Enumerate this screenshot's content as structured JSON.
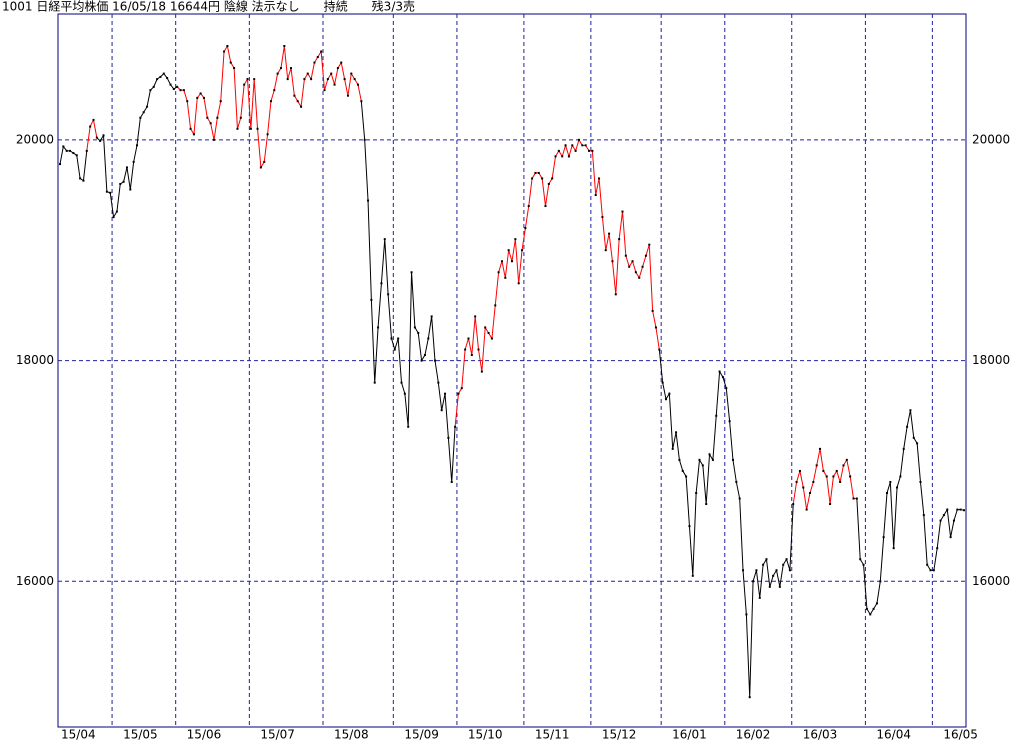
{
  "chart_data": {
    "type": "line",
    "title": "1001 日経平均株価 16/05/18 16644円 陰線 法示なし　　持続　　残3/3売",
    "ylim": [
      14680,
      21140
    ],
    "yticks": [
      16000,
      18000,
      20000
    ],
    "grid": true,
    "color": "#000000",
    "highlight": {
      "color": "#ff0000",
      "ranges": [
        [
          8,
          11
        ],
        [
          35,
          90
        ],
        [
          118,
          179
        ],
        [
          219,
          238
        ]
      ]
    },
    "categories": [
      "15/04",
      null,
      null,
      null,
      null,
      null,
      null,
      null,
      null,
      null,
      null,
      null,
      null,
      null,
      null,
      null,
      "15/05",
      null,
      null,
      null,
      null,
      null,
      null,
      null,
      null,
      null,
      null,
      null,
      null,
      null,
      null,
      null,
      null,
      null,
      null,
      "15/06",
      null,
      null,
      null,
      null,
      null,
      null,
      null,
      null,
      null,
      null,
      null,
      null,
      null,
      null,
      null,
      null,
      null,
      null,
      null,
      null,
      null,
      "15/07",
      null,
      null,
      null,
      null,
      null,
      null,
      null,
      null,
      null,
      null,
      null,
      null,
      null,
      null,
      null,
      null,
      null,
      null,
      null,
      null,
      null,
      "15/08",
      null,
      null,
      null,
      null,
      null,
      null,
      null,
      null,
      null,
      null,
      null,
      null,
      null,
      null,
      null,
      null,
      null,
      null,
      null,
      null,
      "15/09",
      null,
      null,
      null,
      null,
      null,
      null,
      null,
      null,
      null,
      null,
      null,
      null,
      null,
      null,
      null,
      null,
      null,
      null,
      "15/10",
      null,
      null,
      null,
      null,
      null,
      null,
      null,
      null,
      null,
      null,
      null,
      null,
      null,
      null,
      null,
      null,
      null,
      null,
      null,
      "15/11",
      null,
      null,
      null,
      null,
      null,
      null,
      null,
      null,
      null,
      null,
      null,
      null,
      null,
      null,
      null,
      null,
      null,
      null,
      null,
      "15/12",
      null,
      null,
      null,
      null,
      null,
      null,
      null,
      null,
      null,
      null,
      null,
      null,
      null,
      null,
      null,
      null,
      null,
      null,
      null,
      null,
      "16/01",
      null,
      null,
      null,
      null,
      null,
      null,
      null,
      null,
      null,
      null,
      null,
      null,
      null,
      null,
      null,
      null,
      null,
      null,
      "16/02",
      null,
      null,
      null,
      null,
      null,
      null,
      null,
      null,
      null,
      null,
      null,
      null,
      null,
      null,
      null,
      null,
      null,
      null,
      null,
      "16/03",
      null,
      null,
      null,
      null,
      null,
      null,
      null,
      null,
      null,
      null,
      null,
      null,
      null,
      null,
      null,
      null,
      null,
      null,
      null,
      null,
      null,
      "16/04",
      null,
      null,
      null,
      null,
      null,
      null,
      null,
      null,
      null,
      null,
      null,
      null,
      null,
      null,
      null,
      null,
      null,
      null,
      null,
      "16/05",
      null,
      null,
      null,
      null,
      null,
      null,
      null,
      null,
      null
    ],
    "values": [
      19780,
      19940,
      19900,
      19900,
      19880,
      19860,
      19650,
      19630,
      19900,
      20120,
      20180,
      20020,
      19990,
      20040,
      19530,
      19520,
      19300,
      19350,
      19600,
      19620,
      19750,
      19550,
      19800,
      19950,
      20200,
      20250,
      20300,
      20450,
      20480,
      20550,
      20570,
      20600,
      20560,
      20500,
      20460,
      20480,
      20450,
      20450,
      20350,
      20100,
      20050,
      20380,
      20420,
      20380,
      20200,
      20150,
      20000,
      20200,
      20350,
      20800,
      20850,
      20700,
      20650,
      20100,
      20200,
      20500,
      20550,
      20100,
      20550,
      20100,
      19750,
      19800,
      20050,
      20350,
      20450,
      20600,
      20650,
      20850,
      20550,
      20650,
      20400,
      20350,
      20300,
      20550,
      20600,
      20550,
      20700,
      20750,
      20800,
      20450,
      20550,
      20600,
      20500,
      20650,
      20700,
      20550,
      20400,
      20600,
      20550,
      20500,
      20350,
      20000,
      19450,
      18550,
      17800,
      18300,
      18700,
      19100,
      18600,
      18200,
      18100,
      18200,
      17800,
      17700,
      17400,
      18800,
      18300,
      18250,
      18000,
      18050,
      18200,
      18400,
      18000,
      17800,
      17550,
      17700,
      17300,
      16900,
      17400,
      17700,
      17750,
      18100,
      18200,
      18050,
      18400,
      18100,
      17900,
      18300,
      18250,
      18200,
      18500,
      18800,
      18900,
      18750,
      19000,
      18900,
      19100,
      18700,
      19000,
      19200,
      19400,
      19650,
      19700,
      19700,
      19650,
      19400,
      19600,
      19650,
      19850,
      19900,
      19850,
      19950,
      19850,
      19950,
      19900,
      20000,
      19950,
      19950,
      19900,
      19900,
      19500,
      19650,
      19300,
      19000,
      19150,
      18900,
      18600,
      19100,
      19350,
      18950,
      18850,
      18900,
      18800,
      18750,
      18850,
      18950,
      19050,
      18450,
      18300,
      18100,
      17800,
      17650,
      17700,
      17200,
      17350,
      17100,
      17000,
      16950,
      16500,
      16050,
      16800,
      17100,
      17050,
      16700,
      17150,
      17100,
      17500,
      17900,
      17850,
      17750,
      17450,
      17100,
      16900,
      16750,
      16100,
      15700,
      14950,
      16000,
      16100,
      15850,
      16150,
      16200,
      15950,
      16050,
      16100,
      15950,
      16150,
      16200,
      16100,
      16700,
      16900,
      17000,
      16850,
      16650,
      16800,
      16900,
      17050,
      17200,
      17000,
      16950,
      16700,
      16950,
      17000,
      16900,
      17050,
      17100,
      16950,
      16750,
      16750,
      16200,
      16150,
      15750,
      15700,
      15750,
      15800,
      16000,
      16400,
      16800,
      16900,
      16300,
      16850,
      16950,
      17200,
      17400,
      17550,
      17300,
      17250,
      16900,
      16600,
      16150,
      16100,
      16100,
      16300,
      16550,
      16600,
      16650,
      16400,
      16550,
      16650,
      16650,
      16644
    ]
  }
}
